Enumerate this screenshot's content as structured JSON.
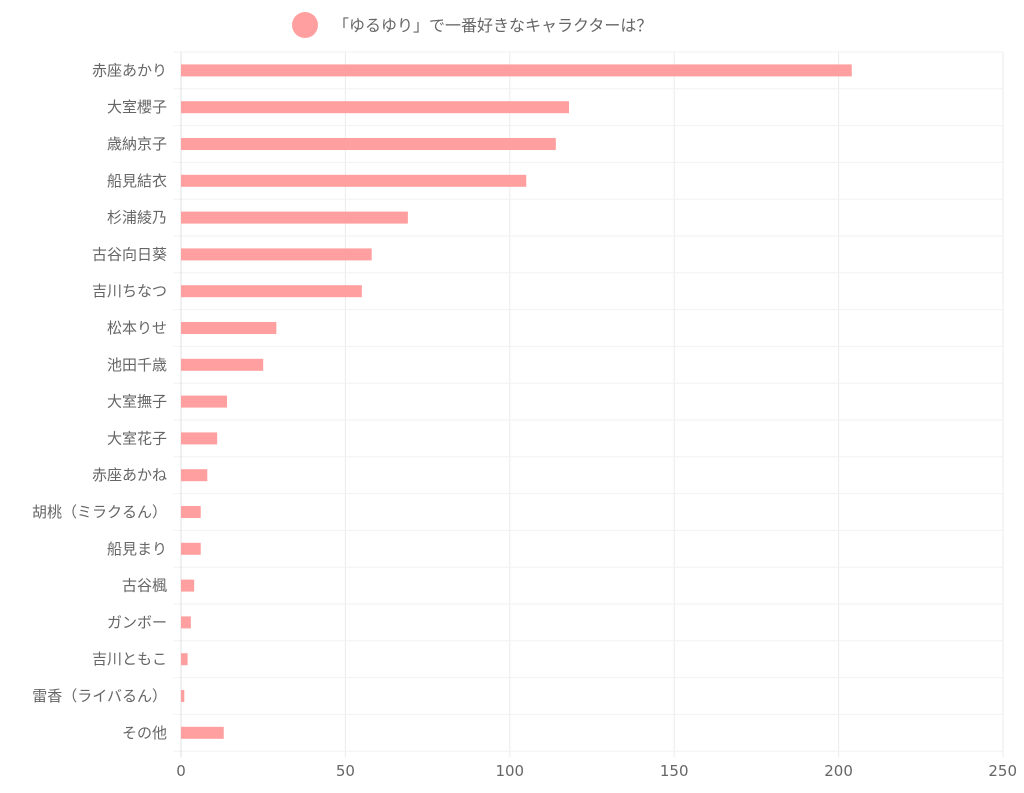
{
  "chart_data": {
    "type": "bar",
    "orientation": "horizontal",
    "title": "",
    "xlabel": "",
    "ylabel": "",
    "xlim": [
      0,
      250
    ],
    "x_ticks": [
      "0",
      "50",
      "100",
      "150",
      "200",
      "250"
    ],
    "grid": true,
    "legend_position": "top",
    "categories": [
      "赤座あかり",
      "大室櫻子",
      "歳納京子",
      "船見結衣",
      "杉浦綾乃",
      "古谷向日葵",
      "吉川ちなつ",
      "松本りせ",
      "池田千歳",
      "大室撫子",
      "大室花子",
      "赤座あかね",
      "胡桃（ミラクるん）",
      "船見まり",
      "古谷楓",
      "ガンボー",
      "吉川ともこ",
      "雷香（ライバるん）",
      "その他"
    ],
    "series": [
      {
        "name": "「ゆるゆり」で一番好きなキャラクターは？",
        "color": "#ff9f9f",
        "values": [
          204,
          118,
          114,
          105,
          69,
          58,
          55,
          29,
          25,
          14,
          11,
          8,
          6,
          6,
          4,
          3,
          2,
          1,
          13
        ]
      }
    ]
  }
}
